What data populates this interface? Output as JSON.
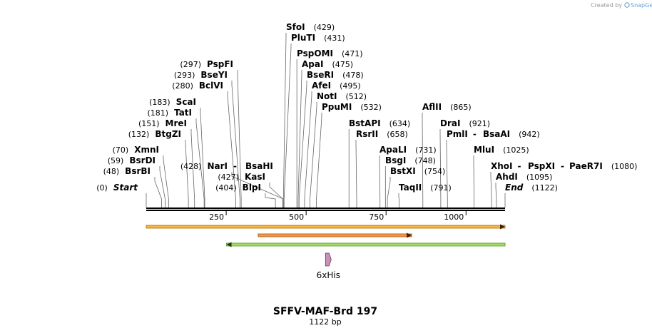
{
  "credit": {
    "prefix": "Created by",
    "brand": "SnapGene"
  },
  "title": "SFFV-MAF-Brd 197",
  "subtitle": "1122 bp",
  "sequence": {
    "length": 1122
  },
  "ticks": [
    250,
    500,
    750,
    1000
  ],
  "sites": [
    {
      "id": "start",
      "name": "Start",
      "pos": 0,
      "pos_text": "(0)",
      "side": "left",
      "special": true
    },
    {
      "id": "bsrbi",
      "name": "BsrBI",
      "pos": 48,
      "pos_text": "(48)",
      "side": "left"
    },
    {
      "id": "bsrdi",
      "name": "BsrDI",
      "pos": 59,
      "pos_text": "(59)",
      "side": "left"
    },
    {
      "id": "xmni",
      "name": "XmnI",
      "pos": 70,
      "pos_text": "(70)",
      "side": "left"
    },
    {
      "id": "btgzi",
      "name": "BtgZI",
      "pos": 132,
      "pos_text": "(132)",
      "side": "left"
    },
    {
      "id": "mrei",
      "name": "MreI",
      "pos": 151,
      "pos_text": "(151)",
      "side": "left"
    },
    {
      "id": "tati",
      "name": "TatI",
      "pos": 181,
      "pos_text": "(181)",
      "side": "left"
    },
    {
      "id": "scai",
      "name": "ScaI",
      "pos": 183,
      "pos_text": "(183)",
      "side": "left"
    },
    {
      "id": "bclvi",
      "name": "BclVI",
      "pos": 280,
      "pos_text": "(280)",
      "side": "left"
    },
    {
      "id": "bseyi",
      "name": "BseYI",
      "pos": 293,
      "pos_text": "(293)",
      "side": "left"
    },
    {
      "id": "pspfi",
      "name": "PspFI",
      "pos": 297,
      "pos_text": "(297)",
      "side": "left"
    },
    {
      "id": "blpi",
      "name": "BlpI",
      "pos": 404,
      "pos_text": "(404)",
      "side": "left"
    },
    {
      "id": "kasi",
      "name": "KasI",
      "pos": 427,
      "pos_text": "(427)",
      "side": "left"
    },
    {
      "id": "nari",
      "name": "NarI",
      "pos": 428,
      "pos_text": "(428)",
      "side": "left",
      "extra": "BsaHI"
    },
    {
      "id": "sfoi",
      "name": "SfoI",
      "pos": 429,
      "pos_text": "(429)",
      "side": "right"
    },
    {
      "id": "pluti",
      "name": "PluTI",
      "pos": 431,
      "pos_text": "(431)",
      "side": "right"
    },
    {
      "id": "pspomi",
      "name": "PspOMI",
      "pos": 471,
      "pos_text": "(471)",
      "side": "right"
    },
    {
      "id": "apai",
      "name": "ApaI",
      "pos": 475,
      "pos_text": "(475)",
      "side": "right"
    },
    {
      "id": "bseri",
      "name": "BseRI",
      "pos": 478,
      "pos_text": "(478)",
      "side": "right"
    },
    {
      "id": "afei",
      "name": "AfeI",
      "pos": 495,
      "pos_text": "(495)",
      "side": "right"
    },
    {
      "id": "noti",
      "name": "NotI",
      "pos": 512,
      "pos_text": "(512)",
      "side": "right"
    },
    {
      "id": "ppumi",
      "name": "PpuMI",
      "pos": 532,
      "pos_text": "(532)",
      "side": "right"
    },
    {
      "id": "bstapi",
      "name": "BstAPI",
      "pos": 634,
      "pos_text": "(634)",
      "side": "right"
    },
    {
      "id": "rsrii",
      "name": "RsrII",
      "pos": 658,
      "pos_text": "(658)",
      "side": "right"
    },
    {
      "id": "apali",
      "name": "ApaLI",
      "pos": 731,
      "pos_text": "(731)",
      "side": "right"
    },
    {
      "id": "bsgi",
      "name": "BsgI",
      "pos": 748,
      "pos_text": "(748)",
      "side": "right"
    },
    {
      "id": "bstxi",
      "name": "BstXI",
      "pos": 754,
      "pos_text": "(754)",
      "side": "right"
    },
    {
      "id": "taqii",
      "name": "TaqII",
      "pos": 791,
      "pos_text": "(791)",
      "side": "right"
    },
    {
      "id": "aflii",
      "name": "AflII",
      "pos": 865,
      "pos_text": "(865)",
      "side": "right"
    },
    {
      "id": "drai",
      "name": "DraI",
      "pos": 921,
      "pos_text": "(921)",
      "side": "right"
    },
    {
      "id": "pmli",
      "name": "PmlI",
      "pos": 942,
      "pos_text": "(942)",
      "side": "right",
      "extra": "BsaAI"
    },
    {
      "id": "mlui",
      "name": "MluI",
      "pos": 1025,
      "pos_text": "(1025)",
      "side": "right"
    },
    {
      "id": "xhoi",
      "name": "XhoI",
      "pos": 1080,
      "pos_text": "(1080)",
      "side": "right",
      "extra": "PspXI",
      "extra2": "PaeR7I"
    },
    {
      "id": "ahdi",
      "name": "AhdI",
      "pos": 1095,
      "pos_text": "(1095)",
      "side": "right"
    },
    {
      "id": "end",
      "name": "End",
      "pos": 1122,
      "pos_text": "(1122)",
      "side": "right",
      "special": true
    }
  ],
  "features": [
    {
      "id": "feature-1",
      "start": 1,
      "end": 1122,
      "direction": "forward",
      "color": "#f5b642",
      "border": "#b86a00",
      "row": 1
    },
    {
      "id": "feature-2",
      "start": 351,
      "end": 830,
      "direction": "forward",
      "color": "#f59842",
      "border": "#a8501a",
      "row": 2
    },
    {
      "id": "feature-3",
      "start": 252,
      "end": 1122,
      "direction": "reverse",
      "color": "#a8dd6a",
      "border": "#4d9a1c",
      "row": 3
    },
    {
      "id": "6xhis",
      "name": "6xHis",
      "start": 561,
      "end": 578,
      "direction": "forward",
      "color": "#c792b7",
      "border": "#6a3a5c",
      "row": 4
    }
  ]
}
